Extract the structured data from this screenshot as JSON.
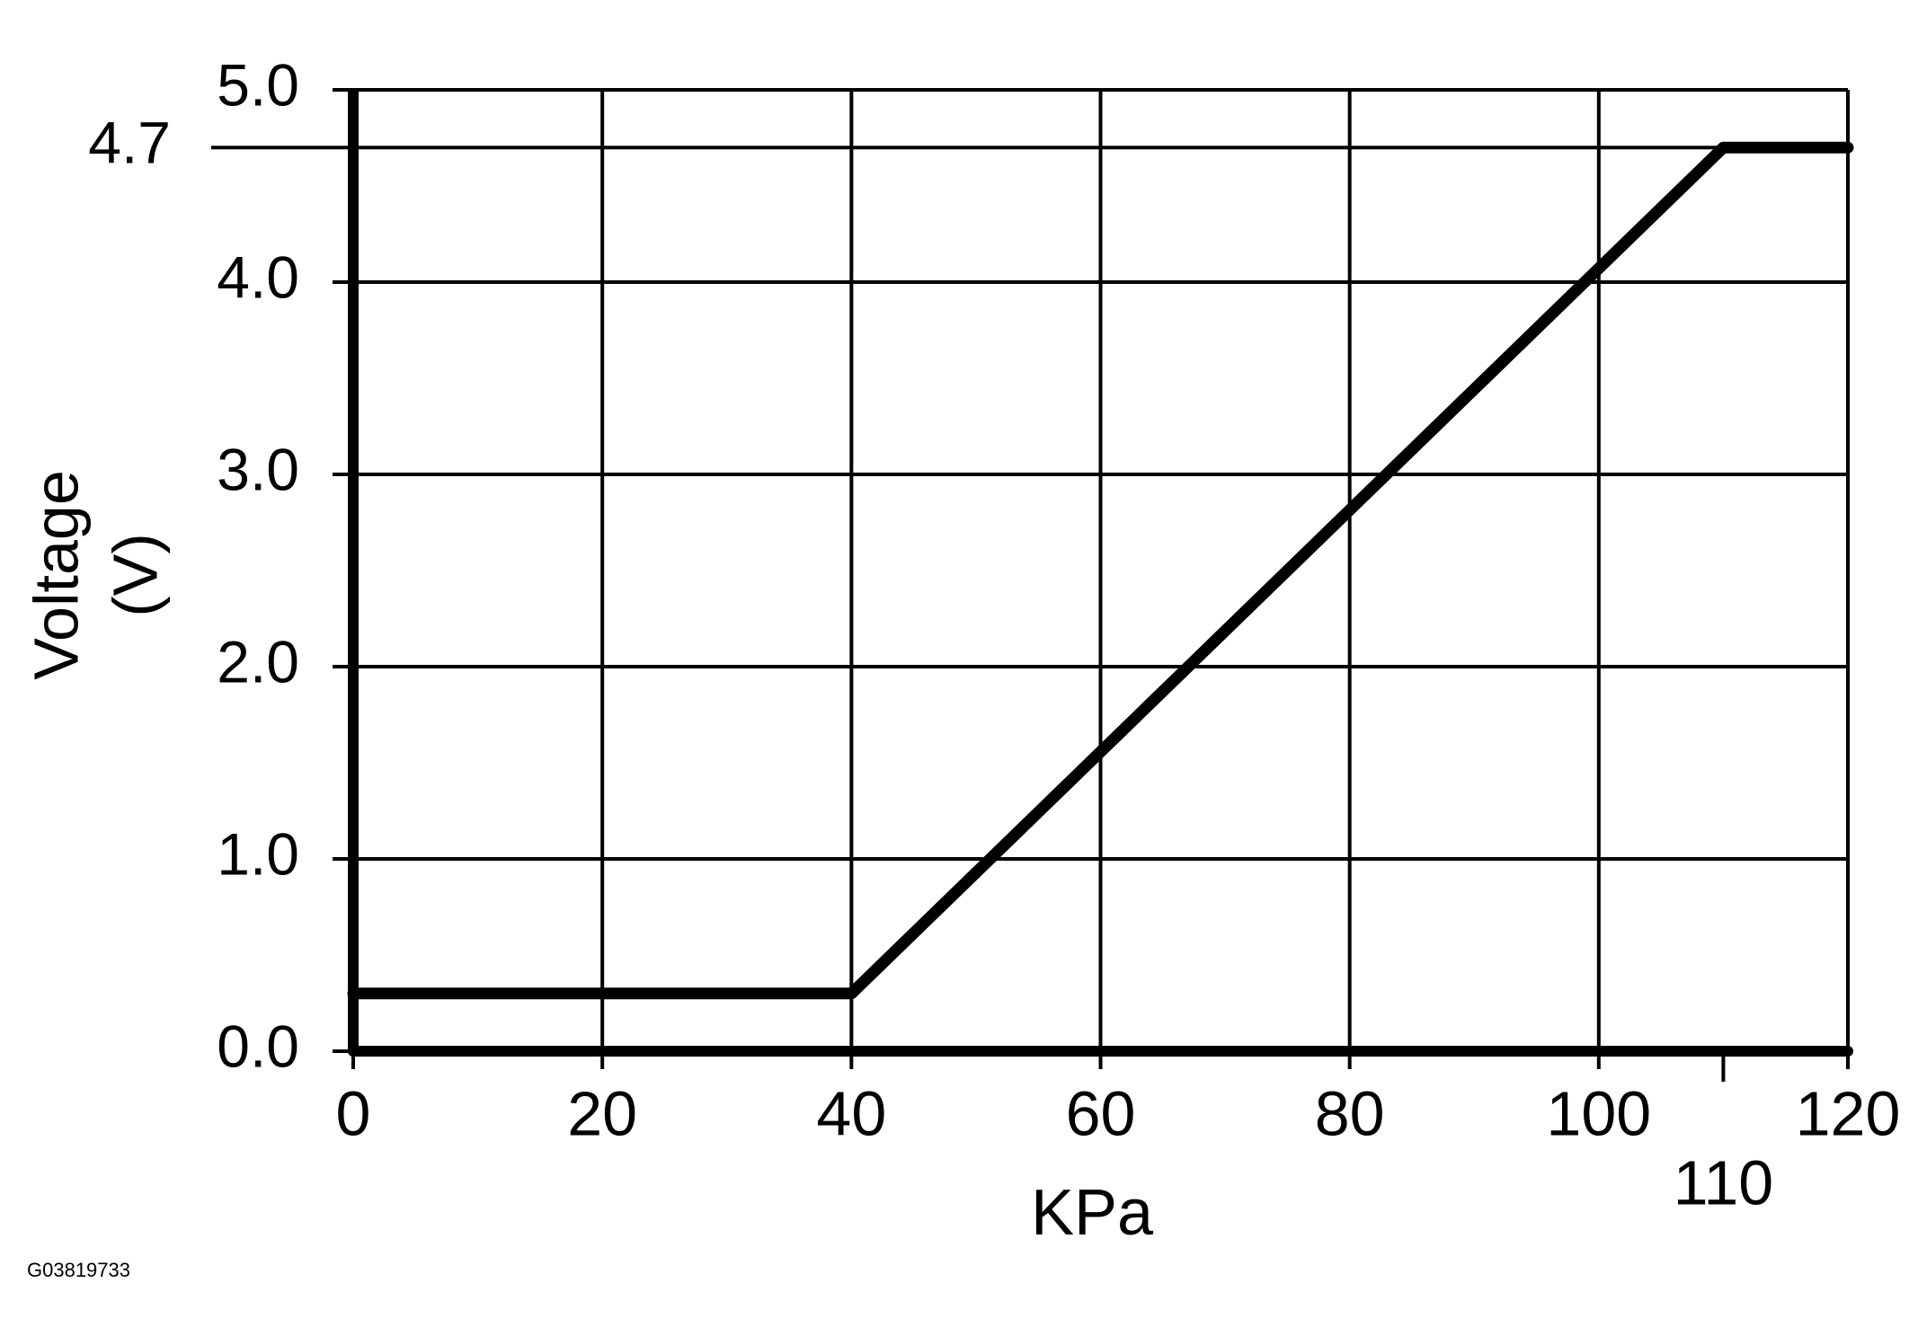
{
  "chart_data": {
    "type": "line",
    "ylabel": [
      "Voltage",
      "(V)"
    ],
    "xlabel": "KPa",
    "footnote": "G03819733",
    "x": [
      0,
      40,
      110,
      120
    ],
    "series": [
      {
        "color": "#000000",
        "values": [
          0.3,
          0.3,
          4.7,
          4.7
        ]
      }
    ],
    "xlim": [
      0,
      120
    ],
    "ylim": [
      0,
      5
    ],
    "xticks": [
      0,
      20,
      40,
      60,
      80,
      100,
      110,
      120
    ],
    "yticks": [
      {
        "value": 0,
        "label": "0.0"
      },
      {
        "value": 1,
        "label": "1.0"
      },
      {
        "value": 2,
        "label": "2.0"
      },
      {
        "value": 3,
        "label": "3.0"
      },
      {
        "value": 4,
        "label": "4.0"
      },
      4.7,
      {
        "value": 5,
        "label": "5.0"
      }
    ],
    "grid": true
  }
}
